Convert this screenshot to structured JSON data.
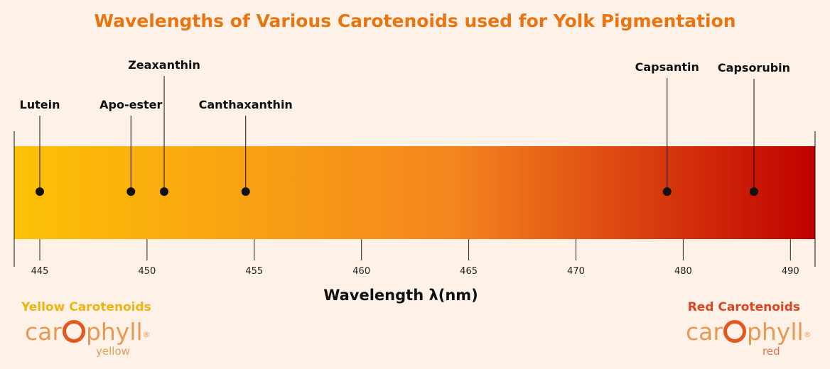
{
  "title": "Wavelengths of Various Carotenoids used for Yolk Pigmentation",
  "xlabel": "Wavelength λ(nm)",
  "yellow_group_label": "Yellow Carotenoids",
  "red_group_label": "Red Carotenoids",
  "logos": {
    "yellow": {
      "word": "carophyll",
      "sub": "yellow"
    },
    "red": {
      "word": "carophyll",
      "sub": "red"
    }
  },
  "colors": {
    "title": "#e67512",
    "yellow_group": "#efb411",
    "red_group": "#dd4420",
    "gradient_start": "#fdc106",
    "gradient_mid": "#f4851f",
    "gradient_end": "#c00000"
  },
  "chart_data": {
    "type": "scatter",
    "xlabel": "Wavelength λ(nm)",
    "ticks": [
      "445",
      "450",
      "455",
      "460",
      "465",
      "470",
      "480",
      "490"
    ],
    "points": [
      {
        "name": "Lutein",
        "tick_position": 0.0
      },
      {
        "name": "Apo-ester",
        "tick_position": 0.85
      },
      {
        "name": "Zeaxanthin",
        "tick_position": 1.16
      },
      {
        "name": "Canthaxanthin",
        "tick_position": 1.92
      },
      {
        "name": "Capsantin",
        "tick_position": 5.85
      },
      {
        "name": "Capsorubin",
        "tick_position": 6.66
      }
    ],
    "grid": false,
    "legend": "none"
  }
}
